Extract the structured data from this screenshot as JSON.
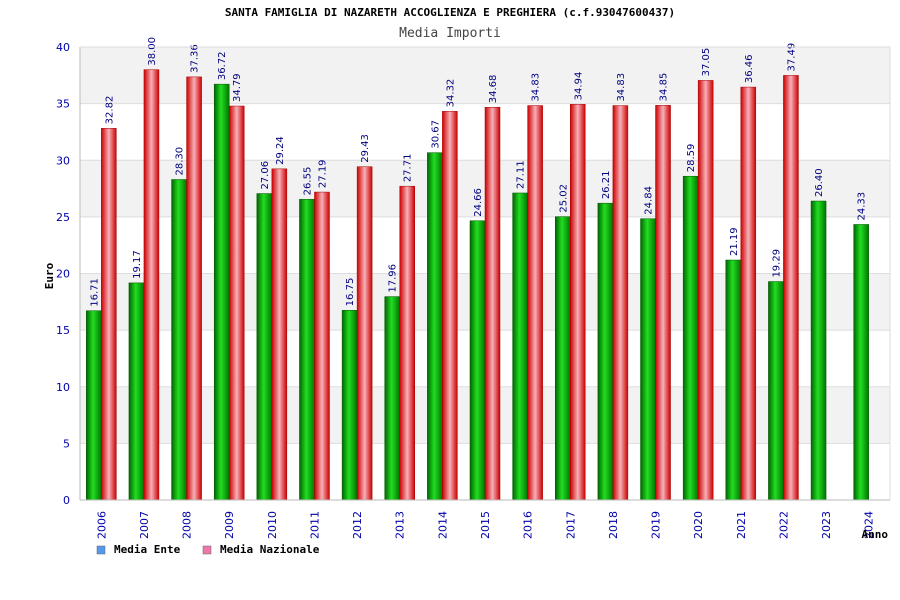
{
  "chart_data": {
    "type": "bar",
    "title": "SANTA FAMIGLIA DI NAZARETH ACCOGLIENZA E PREGHIERA (c.f.93047600437)",
    "subtitle": "Media Importi",
    "xlabel": "Anno",
    "ylabel": "Euro",
    "ylim": [
      0,
      40
    ],
    "yticks": [
      "0",
      "5",
      "10",
      "15",
      "20",
      "25",
      "30",
      "35",
      "40"
    ],
    "grid": true,
    "legend_position": "bottom-left",
    "categories": [
      "2006",
      "2007",
      "2008",
      "2009",
      "2010",
      "2011",
      "2012",
      "2013",
      "2014",
      "2015",
      "2016",
      "2017",
      "2018",
      "2019",
      "2020",
      "2021",
      "2022",
      "2023",
      "2024"
    ],
    "series": [
      {
        "name": "Media Ente",
        "color": "#00aa00",
        "legend_color": "#5599ee",
        "values": [
          16.71,
          19.17,
          28.3,
          36.72,
          27.06,
          26.55,
          16.75,
          17.96,
          30.67,
          24.66,
          27.11,
          25.02,
          26.21,
          24.84,
          28.59,
          21.19,
          19.29,
          26.4,
          24.33
        ],
        "labels": [
          "16.71",
          "19.17",
          "28.30",
          "36.72",
          "27.06",
          "26.55",
          "16.75",
          "17.96",
          "30.67",
          "24.66",
          "27.11",
          "25.02",
          "26.21",
          "24.84",
          "28.59",
          "21.19",
          "19.29",
          "26.40",
          "24.33"
        ]
      },
      {
        "name": "Media Nazionale",
        "color": "#ee2222",
        "legend_color": "#ee77aa",
        "values": [
          32.82,
          38.0,
          37.36,
          34.79,
          29.24,
          27.19,
          29.43,
          27.71,
          34.32,
          34.68,
          34.83,
          34.94,
          34.83,
          34.85,
          37.05,
          36.46,
          37.49,
          null,
          null
        ],
        "labels": [
          "32.82",
          "38.00",
          "37.36",
          "34.79",
          "29.24",
          "27.19",
          "29.43",
          "27.71",
          "34.32",
          "34.68",
          "34.83",
          "34.94",
          "34.83",
          "34.85",
          "37.05",
          "36.46",
          "37.49",
          "",
          ""
        ]
      }
    ]
  }
}
